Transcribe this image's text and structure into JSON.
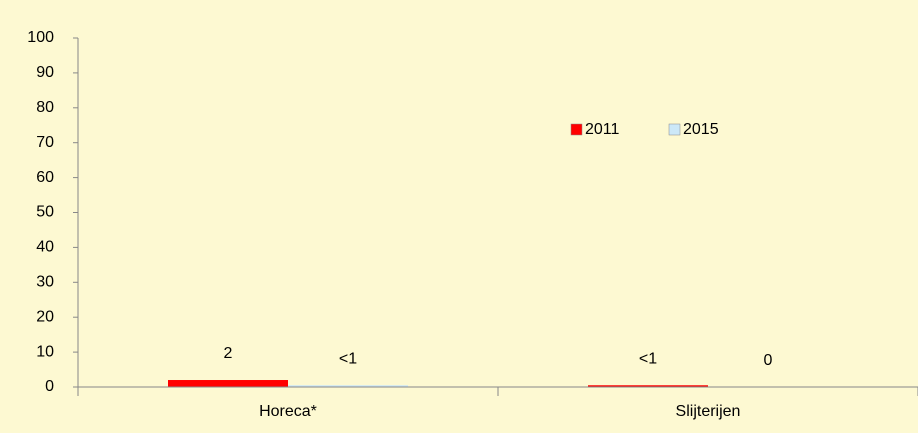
{
  "chart_data": {
    "type": "bar",
    "categories": [
      "Horeca*",
      "Slijterijen"
    ],
    "series": [
      {
        "name": "2011",
        "color": "#ff0000",
        "values": [
          2,
          0.5
        ],
        "value_labels": [
          "2",
          "<1"
        ]
      },
      {
        "name": "2015",
        "color": "#cce8f8",
        "values": [
          0.5,
          0
        ],
        "value_labels": [
          "<1",
          "0"
        ]
      }
    ],
    "ylim": [
      0,
      100
    ],
    "yticks": [
      0,
      10,
      20,
      30,
      40,
      50,
      60,
      70,
      80,
      90,
      100
    ],
    "legend": "top-right"
  }
}
